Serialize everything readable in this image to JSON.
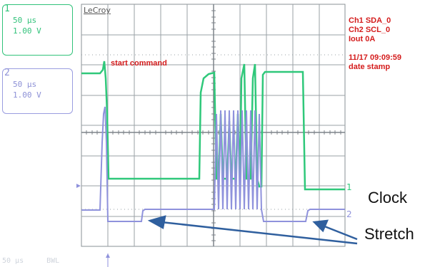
{
  "scope": {
    "brand": "LeCroy",
    "ch1": {
      "number": "1",
      "timebase": "50 µs",
      "volts": "1.00 V",
      "color": "#31c27a"
    },
    "ch2": {
      "number": "2",
      "timebase": "50 µs",
      "volts": "1.00 V",
      "color": "#8c90d6"
    },
    "info": {
      "line1": "Ch1 SDA_0",
      "line2": "Ch2 SCL_0",
      "line3": "Iout 0A",
      "line4": "11/17 09:09:59",
      "line5": "date stamp"
    },
    "trace_labels": {
      "ch1_marker": "1",
      "ch2_marker": "2"
    },
    "annotation_start": "start command",
    "annotation_clock": "Clock",
    "annotation_stretch": "Stretch",
    "status": {
      "timebase": "50 µs",
      "bwl": "BWL"
    },
    "accent_red": "#d41c1c"
  }
}
